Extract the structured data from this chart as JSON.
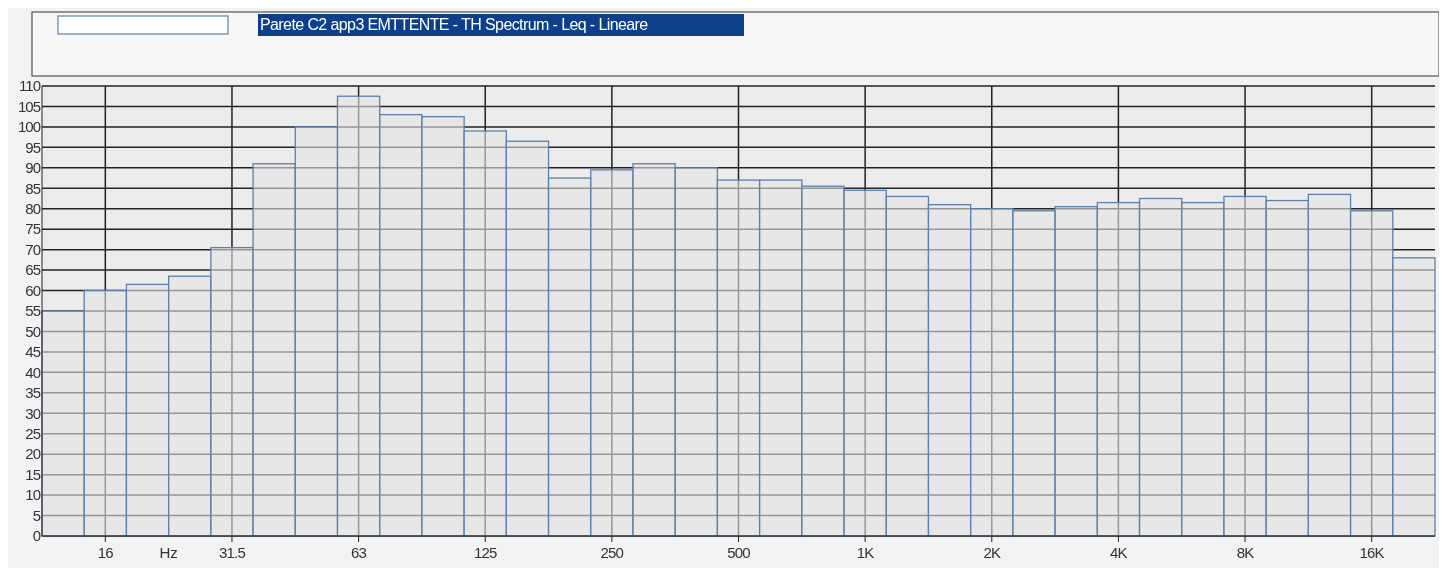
{
  "chart_data": {
    "type": "bar",
    "xlabel": "Hz",
    "categories": [
      null,
      "16",
      null,
      null,
      "31.5",
      null,
      null,
      "63",
      null,
      null,
      "125",
      null,
      null,
      "250",
      null,
      null,
      "500",
      null,
      null,
      "1K",
      null,
      null,
      "2K",
      null,
      null,
      "4K",
      null,
      null,
      "8K",
      null,
      null,
      "16K",
      null
    ],
    "series": [
      {
        "name": "Parete C2 app3 EMTTENTE - TH Spectrum - Leq - Lineare",
        "color": "#5b80ab",
        "values": [
          55,
          60,
          61.5,
          63.5,
          70.5,
          91,
          100,
          107.5,
          103,
          102.5,
          99,
          96.5,
          87.5,
          89.5,
          91,
          90,
          87,
          87,
          85.5,
          84.5,
          83,
          81,
          80,
          79.5,
          80.5,
          81.5,
          82.5,
          81.5,
          83,
          82,
          83.5,
          79.5,
          68
        ]
      }
    ],
    "ylim": [
      0,
      110
    ],
    "yticks": [
      0,
      5,
      10,
      15,
      20,
      25,
      30,
      35,
      40,
      45,
      50,
      55,
      60,
      65,
      70,
      75,
      80,
      85,
      90,
      95,
      100,
      105,
      110
    ],
    "grid": true,
    "legend": "top left"
  }
}
